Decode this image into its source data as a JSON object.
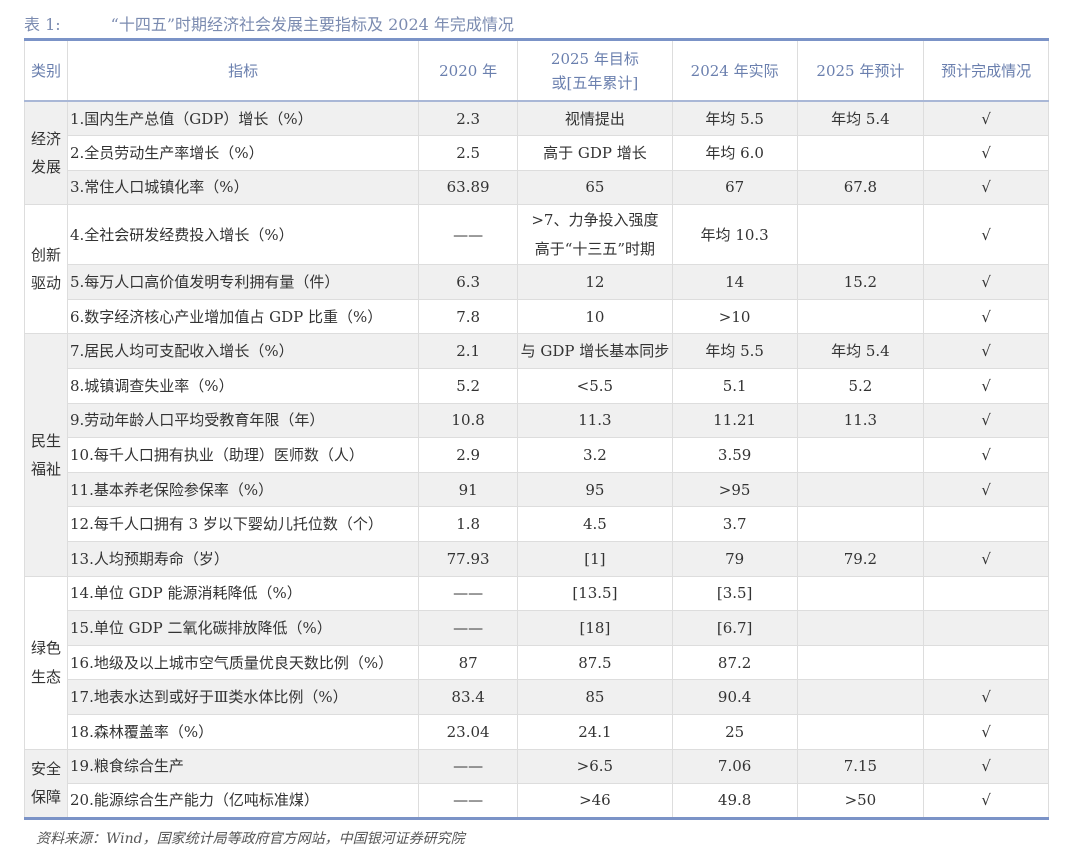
{
  "title": {
    "label": "表 1:",
    "text": "“十四五”时期经济社会发展主要指标及 2024 年完成情况"
  },
  "headers": [
    "类别",
    "指标",
    "2020 年",
    "2025 年目标\n或[五年累计]",
    "2024 年实际",
    "2025 年预计",
    "预计完成情况"
  ],
  "categories": [
    {
      "name": "经济发展",
      "rows": [
        [
          "1.国内生产总值（GDP）增长（%）",
          "2.3",
          "视情提出",
          "年均 5.5",
          "年均 5.4",
          "√"
        ],
        [
          "2.全员劳动生产率增长（%）",
          "2.5",
          "高于 GDP 增长",
          "年均 6.0",
          "",
          "√"
        ],
        [
          "3.常住人口城镇化率（%）",
          "63.89",
          "65",
          "67",
          "67.8",
          "√"
        ]
      ]
    },
    {
      "name": "创新驱动",
      "rows": [
        [
          "4.全社会研发经费投入增长（%）",
          "——",
          ">7、力争投入强度高于“十三五”时期",
          "年均 10.3",
          "",
          "√"
        ],
        [
          "5.每万人口高价值发明专利拥有量（件）",
          "6.3",
          "12",
          "14",
          "15.2",
          "√"
        ],
        [
          "6.数字经济核心产业增加值占 GDP 比重（%）",
          "7.8",
          "10",
          ">10",
          "",
          "√"
        ]
      ]
    },
    {
      "name": "民生福祉",
      "rows": [
        [
          "7.居民人均可支配收入增长（%）",
          "2.1",
          "与 GDP 增长基本同步",
          "年均 5.5",
          "年均 5.4",
          "√"
        ],
        [
          "8.城镇调查失业率（%）",
          "5.2",
          "<5.5",
          "5.1",
          "5.2",
          "√"
        ],
        [
          "9.劳动年龄人口平均受教育年限（年）",
          "10.8",
          "11.3",
          "11.21",
          "11.3",
          "√"
        ],
        [
          "10.每千人口拥有执业（助理）医师数（人）",
          "2.9",
          "3.2",
          "3.59",
          "",
          "√"
        ],
        [
          "11.基本养老保险参保率（%）",
          "91",
          "95",
          ">95",
          "",
          "√"
        ],
        [
          "12.每千人口拥有 3 岁以下婴幼儿托位数（个）",
          "1.8",
          "4.5",
          "3.7",
          "",
          ""
        ],
        [
          "13.人均预期寿命（岁）",
          "77.93",
          "[1]",
          "79",
          "79.2",
          "√"
        ]
      ]
    },
    {
      "name": "绿色生态",
      "rows": [
        [
          "14.单位 GDP 能源消耗降低（%）",
          "——",
          "[13.5]",
          "[3.5]",
          "",
          ""
        ],
        [
          "15.单位 GDP 二氧化碳排放降低（%）",
          "——",
          "[18]",
          "[6.7]",
          "",
          ""
        ],
        [
          "16.地级及以上城市空气质量优良天数比例（%）",
          "87",
          "87.5",
          "87.2",
          "",
          ""
        ],
        [
          "17.地表水达到或好于Ⅲ类水体比例（%）",
          "83.4",
          "85",
          "90.4",
          "",
          "√"
        ],
        [
          "18.森林覆盖率（%）",
          "23.04",
          "24.1",
          "25",
          "",
          "√"
        ]
      ]
    },
    {
      "name": "安全保障",
      "rows": [
        [
          "19.粮食综合生产",
          "——",
          ">6.5",
          "7.06",
          "7.15",
          "√"
        ],
        [
          "20.能源综合生产能力（亿吨标准煤）",
          "——",
          ">46",
          "49.8",
          ">50",
          "√"
        ]
      ]
    }
  ],
  "source": "资料来源：Wind，国家统计局等政府官方网站，中国银河证券研究院"
}
